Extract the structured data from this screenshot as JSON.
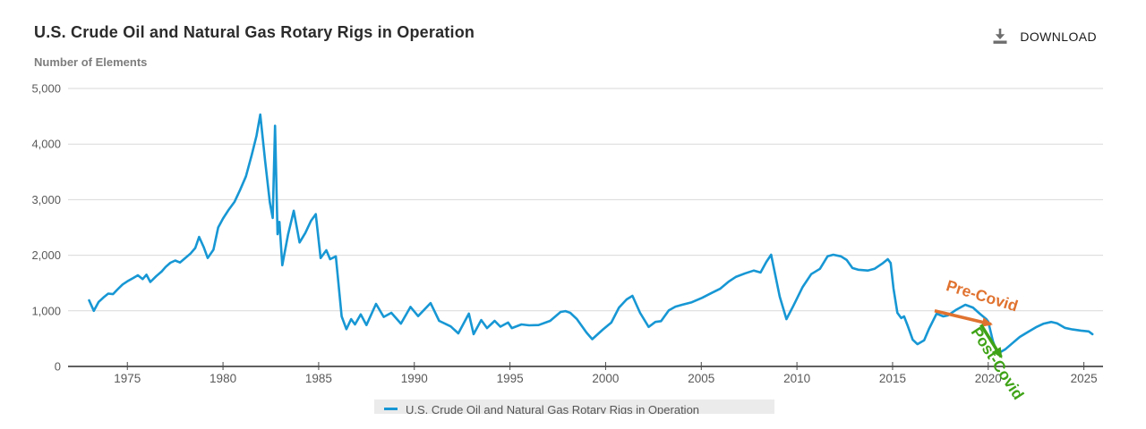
{
  "header": {
    "title": "U.S. Crude Oil and Natural Gas Rotary Rigs in Operation",
    "download_label": "DOWNLOAD"
  },
  "colors": {
    "line": "#1797D4",
    "grid": "#d9d9d9",
    "axis": "#4a4a4a",
    "tick_label": "#595959",
    "pre_covid": "#E0722F",
    "post_covid": "#3FA317",
    "legend_bg": "#ebebeb",
    "icon_gray": "#6e6e6e"
  },
  "chart_data": {
    "type": "line",
    "title": "U.S. Crude Oil and Natural Gas Rotary Rigs in Operation",
    "xlabel": "",
    "ylabel": "Number of Elements",
    "xlim": [
      1971.9,
      2026.0
    ],
    "ylim": [
      0,
      5000
    ],
    "grid": "horizontal",
    "legend_position": "bottom",
    "x_ticks": [
      {
        "value": 1975,
        "label": "1975"
      },
      {
        "value": 1980,
        "label": "1980"
      },
      {
        "value": 1985,
        "label": "1985"
      },
      {
        "value": 1990,
        "label": "1990"
      },
      {
        "value": 1995,
        "label": "1995"
      },
      {
        "value": 2000,
        "label": "2000"
      },
      {
        "value": 2005,
        "label": "2005"
      },
      {
        "value": 2010,
        "label": "2010"
      },
      {
        "value": 2015,
        "label": "2015"
      },
      {
        "value": 2020,
        "label": "2020"
      },
      {
        "value": 2025,
        "label": "2025"
      }
    ],
    "y_ticks": [
      {
        "value": 0,
        "label": "0"
      },
      {
        "value": 1000,
        "label": "1,000"
      },
      {
        "value": 2000,
        "label": "2,000"
      },
      {
        "value": 3000,
        "label": "3,000"
      },
      {
        "value": 4000,
        "label": "4,000"
      },
      {
        "value": 5000,
        "label": "5,000"
      }
    ],
    "series": [
      {
        "name": "U.S. Crude Oil and Natural Gas Rotary Rigs in Operation",
        "color": "#1797D4",
        "points": [
          [
            1973.0,
            1190
          ],
          [
            1973.25,
            1000
          ],
          [
            1973.5,
            1160
          ],
          [
            1973.75,
            1240
          ],
          [
            1974.0,
            1310
          ],
          [
            1974.25,
            1300
          ],
          [
            1974.5,
            1390
          ],
          [
            1974.75,
            1475
          ],
          [
            1975.0,
            1530
          ],
          [
            1975.3,
            1590
          ],
          [
            1975.55,
            1640
          ],
          [
            1975.8,
            1570
          ],
          [
            1976.0,
            1650
          ],
          [
            1976.2,
            1520
          ],
          [
            1976.5,
            1620
          ],
          [
            1976.8,
            1710
          ],
          [
            1977.0,
            1790
          ],
          [
            1977.25,
            1865
          ],
          [
            1977.5,
            1905
          ],
          [
            1977.75,
            1870
          ],
          [
            1978.0,
            1940
          ],
          [
            1978.3,
            2030
          ],
          [
            1978.55,
            2130
          ],
          [
            1978.75,
            2330
          ],
          [
            1979.0,
            2140
          ],
          [
            1979.2,
            1950
          ],
          [
            1979.5,
            2100
          ],
          [
            1979.75,
            2500
          ],
          [
            1980.0,
            2660
          ],
          [
            1980.3,
            2820
          ],
          [
            1980.6,
            2960
          ],
          [
            1980.9,
            3180
          ],
          [
            1981.2,
            3420
          ],
          [
            1981.5,
            3800
          ],
          [
            1981.75,
            4150
          ],
          [
            1981.95,
            4530
          ],
          [
            1982.2,
            3700
          ],
          [
            1982.45,
            2950
          ],
          [
            1982.6,
            2670
          ],
          [
            1982.72,
            4330
          ],
          [
            1982.85,
            2380
          ],
          [
            1982.95,
            2600
          ],
          [
            1983.1,
            1820
          ],
          [
            1983.4,
            2370
          ],
          [
            1983.7,
            2800
          ],
          [
            1984.0,
            2230
          ],
          [
            1984.3,
            2400
          ],
          [
            1984.6,
            2620
          ],
          [
            1984.85,
            2740
          ],
          [
            1985.1,
            1950
          ],
          [
            1985.4,
            2090
          ],
          [
            1985.6,
            1930
          ],
          [
            1985.9,
            1980
          ],
          [
            1986.2,
            900
          ],
          [
            1986.45,
            670
          ],
          [
            1986.7,
            850
          ],
          [
            1986.9,
            755
          ],
          [
            1987.2,
            935
          ],
          [
            1987.5,
            745
          ],
          [
            1988.0,
            1125
          ],
          [
            1988.4,
            890
          ],
          [
            1988.8,
            965
          ],
          [
            1989.3,
            770
          ],
          [
            1989.8,
            1070
          ],
          [
            1990.2,
            905
          ],
          [
            1990.85,
            1140
          ],
          [
            1991.3,
            820
          ],
          [
            1991.9,
            720
          ],
          [
            1992.3,
            595
          ],
          [
            1992.85,
            950
          ],
          [
            1993.1,
            580
          ],
          [
            1993.5,
            835
          ],
          [
            1993.8,
            690
          ],
          [
            1994.2,
            820
          ],
          [
            1994.5,
            715
          ],
          [
            1994.9,
            790
          ],
          [
            1995.1,
            690
          ],
          [
            1995.6,
            755
          ],
          [
            1996.0,
            740
          ],
          [
            1996.5,
            745
          ],
          [
            1997.1,
            820
          ],
          [
            1997.65,
            980
          ],
          [
            1997.9,
            995
          ],
          [
            1998.15,
            965
          ],
          [
            1998.5,
            850
          ],
          [
            1999.0,
            610
          ],
          [
            1999.3,
            490
          ],
          [
            1999.85,
            660
          ],
          [
            2000.3,
            790
          ],
          [
            2000.7,
            1060
          ],
          [
            2001.1,
            1205
          ],
          [
            2001.4,
            1270
          ],
          [
            2001.8,
            965
          ],
          [
            2002.25,
            710
          ],
          [
            2002.6,
            800
          ],
          [
            2002.9,
            815
          ],
          [
            2003.3,
            1010
          ],
          [
            2003.65,
            1075
          ],
          [
            2004.0,
            1110
          ],
          [
            2004.5,
            1155
          ],
          [
            2005.05,
            1235
          ],
          [
            2005.5,
            1315
          ],
          [
            2006.0,
            1400
          ],
          [
            2006.45,
            1530
          ],
          [
            2006.8,
            1610
          ],
          [
            2007.3,
            1675
          ],
          [
            2007.75,
            1725
          ],
          [
            2008.1,
            1690
          ],
          [
            2008.4,
            1880
          ],
          [
            2008.65,
            2010
          ],
          [
            2009.1,
            1255
          ],
          [
            2009.45,
            850
          ],
          [
            2009.8,
            1080
          ],
          [
            2010.3,
            1430
          ],
          [
            2010.75,
            1660
          ],
          [
            2011.2,
            1755
          ],
          [
            2011.6,
            1980
          ],
          [
            2011.9,
            2010
          ],
          [
            2012.3,
            1980
          ],
          [
            2012.6,
            1915
          ],
          [
            2012.9,
            1770
          ],
          [
            2013.2,
            1740
          ],
          [
            2013.7,
            1725
          ],
          [
            2014.05,
            1755
          ],
          [
            2014.5,
            1860
          ],
          [
            2014.75,
            1930
          ],
          [
            2014.9,
            1860
          ],
          [
            2015.05,
            1400
          ],
          [
            2015.25,
            965
          ],
          [
            2015.45,
            870
          ],
          [
            2015.6,
            900
          ],
          [
            2015.8,
            725
          ],
          [
            2016.05,
            480
          ],
          [
            2016.3,
            400
          ],
          [
            2016.65,
            470
          ],
          [
            2016.9,
            675
          ],
          [
            2017.3,
            950
          ],
          [
            2017.65,
            900
          ],
          [
            2017.9,
            920
          ],
          [
            2018.3,
            1015
          ],
          [
            2018.8,
            1110
          ],
          [
            2019.2,
            1060
          ],
          [
            2019.55,
            950
          ],
          [
            2019.9,
            850
          ],
          [
            2020.0,
            805
          ],
          [
            2020.25,
            450
          ],
          [
            2020.45,
            260
          ],
          [
            2020.6,
            250
          ],
          [
            2020.9,
            310
          ],
          [
            2021.3,
            430
          ],
          [
            2021.65,
            530
          ],
          [
            2022.1,
            625
          ],
          [
            2022.5,
            705
          ],
          [
            2022.9,
            770
          ],
          [
            2023.3,
            800
          ],
          [
            2023.6,
            775
          ],
          [
            2024.0,
            695
          ],
          [
            2024.4,
            665
          ],
          [
            2024.85,
            645
          ],
          [
            2025.25,
            630
          ],
          [
            2025.45,
            580
          ]
        ]
      }
    ],
    "annotations": [
      {
        "label": "Pre-Covid",
        "color": "#E0722F",
        "arrow": {
          "from": [
            2017.2,
            1000
          ],
          "to": [
            2020.15,
            760
          ]
        },
        "text_pos": [
          2019.6,
          1180
        ],
        "rotation": 17
      },
      {
        "label": "Post-Covid",
        "color": "#3FA317",
        "arrow": {
          "from": [
            2019.62,
            750
          ],
          "to": [
            2020.68,
            170
          ]
        },
        "text_pos": [
          2020.25,
          5
        ],
        "rotation": 57
      }
    ]
  },
  "legend": {
    "items": [
      {
        "label": "U.S. Crude Oil and Natural Gas Rotary Rigs in Operation",
        "color": "#1797D4"
      }
    ]
  }
}
